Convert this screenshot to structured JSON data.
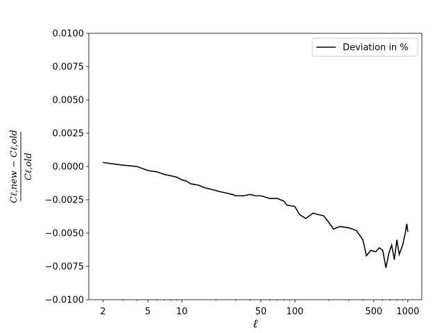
{
  "chart_data": {
    "type": "line",
    "x_label": "ℓ",
    "y_label": {
      "numerator": "Cℓ,new − Cℓ,old",
      "denominator": "Cℓ,old"
    },
    "x": [
      2,
      3,
      4,
      5,
      6,
      7,
      8,
      9,
      10,
      11,
      12,
      14,
      16,
      18,
      20,
      22,
      25,
      28,
      30,
      32,
      35,
      40,
      45,
      50,
      55,
      60,
      70,
      80,
      85,
      100,
      110,
      125,
      145,
      160,
      180,
      200,
      220,
      250,
      300,
      350,
      400,
      430,
      470,
      520,
      560,
      600,
      640,
      680,
      720,
      760,
      800,
      840,
      900,
      950,
      980,
      1000
    ],
    "series": [
      {
        "name": "Deviation in %",
        "color": "#000000",
        "values": [
          0.0003,
          0.0001,
          0.0,
          -0.0003,
          -0.0004,
          -0.0006,
          -0.0007,
          -0.0008,
          -0.001,
          -0.0011,
          -0.0013,
          -0.0014,
          -0.0016,
          -0.0017,
          -0.0018,
          -0.0019,
          -0.002,
          -0.0021,
          -0.0022,
          -0.0022,
          -0.0022,
          -0.0021,
          -0.0022,
          -0.0022,
          -0.0023,
          -0.0024,
          -0.0024,
          -0.0026,
          -0.0029,
          -0.003,
          -0.0036,
          -0.0039,
          -0.0035,
          -0.0036,
          -0.0037,
          -0.0042,
          -0.0047,
          -0.0045,
          -0.0046,
          -0.0048,
          -0.0055,
          -0.0067,
          -0.0063,
          -0.0064,
          -0.0061,
          -0.0063,
          -0.0076,
          -0.0065,
          -0.0059,
          -0.007,
          -0.0055,
          -0.0066,
          -0.0059,
          -0.005,
          -0.0043,
          -0.0049
        ]
      }
    ],
    "xlim": [
      1.5,
      1330
    ],
    "log_x": true,
    "xticks": [
      2,
      5,
      10,
      50,
      100,
      500,
      1000
    ],
    "ylim": [
      -0.01,
      0.01
    ],
    "yticks": [
      {
        "value": -0.01,
        "label": "−0.0100"
      },
      {
        "value": -0.0075,
        "label": "−0.0075"
      },
      {
        "value": -0.005,
        "label": "−0.0050"
      },
      {
        "value": -0.0025,
        "label": "−0.0025"
      },
      {
        "value": 0,
        "label": "0.0000"
      },
      {
        "value": 0.0025,
        "label": "0.0025"
      },
      {
        "value": 0.005,
        "label": "0.0050"
      },
      {
        "value": 0.0075,
        "label": "0.0075"
      },
      {
        "value": 0.01,
        "label": "0.0100"
      }
    ],
    "legend": "upper right"
  }
}
